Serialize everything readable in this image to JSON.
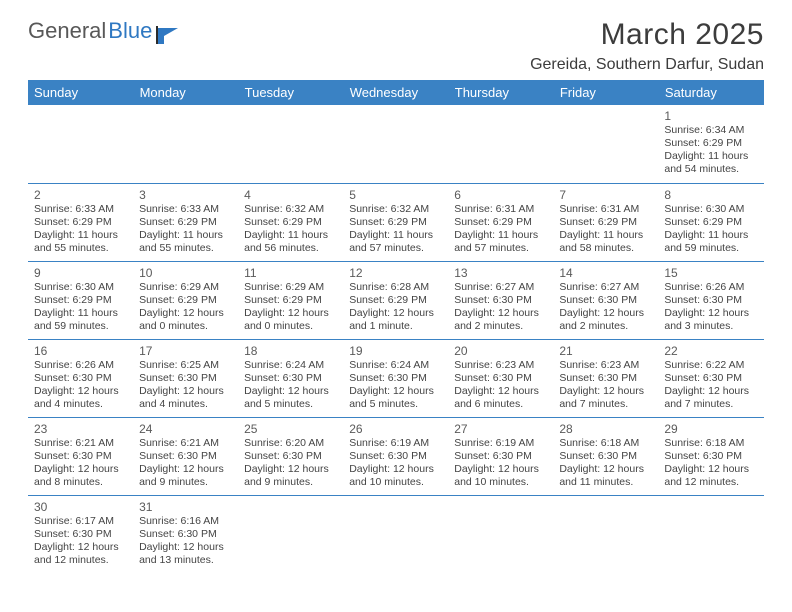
{
  "logo": {
    "text1": "General",
    "text2": "Blue"
  },
  "title": "March 2025",
  "subtitle": "Gereida, Southern Darfur, Sudan",
  "colors": {
    "header_bg": "#3a82c4",
    "header_fg": "#ffffff",
    "rule": "#3a82c4",
    "logo_blue": "#2f78c2"
  },
  "weekdays": [
    "Sunday",
    "Monday",
    "Tuesday",
    "Wednesday",
    "Thursday",
    "Friday",
    "Saturday"
  ],
  "weeks": [
    [
      null,
      null,
      null,
      null,
      null,
      null,
      {
        "n": "1",
        "sr": "Sunrise: 6:34 AM",
        "ss": "Sunset: 6:29 PM",
        "dl": "Daylight: 11 hours and 54 minutes."
      }
    ],
    [
      {
        "n": "2",
        "sr": "Sunrise: 6:33 AM",
        "ss": "Sunset: 6:29 PM",
        "dl": "Daylight: 11 hours and 55 minutes."
      },
      {
        "n": "3",
        "sr": "Sunrise: 6:33 AM",
        "ss": "Sunset: 6:29 PM",
        "dl": "Daylight: 11 hours and 55 minutes."
      },
      {
        "n": "4",
        "sr": "Sunrise: 6:32 AM",
        "ss": "Sunset: 6:29 PM",
        "dl": "Daylight: 11 hours and 56 minutes."
      },
      {
        "n": "5",
        "sr": "Sunrise: 6:32 AM",
        "ss": "Sunset: 6:29 PM",
        "dl": "Daylight: 11 hours and 57 minutes."
      },
      {
        "n": "6",
        "sr": "Sunrise: 6:31 AM",
        "ss": "Sunset: 6:29 PM",
        "dl": "Daylight: 11 hours and 57 minutes."
      },
      {
        "n": "7",
        "sr": "Sunrise: 6:31 AM",
        "ss": "Sunset: 6:29 PM",
        "dl": "Daylight: 11 hours and 58 minutes."
      },
      {
        "n": "8",
        "sr": "Sunrise: 6:30 AM",
        "ss": "Sunset: 6:29 PM",
        "dl": "Daylight: 11 hours and 59 minutes."
      }
    ],
    [
      {
        "n": "9",
        "sr": "Sunrise: 6:30 AM",
        "ss": "Sunset: 6:29 PM",
        "dl": "Daylight: 11 hours and 59 minutes."
      },
      {
        "n": "10",
        "sr": "Sunrise: 6:29 AM",
        "ss": "Sunset: 6:29 PM",
        "dl": "Daylight: 12 hours and 0 minutes."
      },
      {
        "n": "11",
        "sr": "Sunrise: 6:29 AM",
        "ss": "Sunset: 6:29 PM",
        "dl": "Daylight: 12 hours and 0 minutes."
      },
      {
        "n": "12",
        "sr": "Sunrise: 6:28 AM",
        "ss": "Sunset: 6:29 PM",
        "dl": "Daylight: 12 hours and 1 minute."
      },
      {
        "n": "13",
        "sr": "Sunrise: 6:27 AM",
        "ss": "Sunset: 6:30 PM",
        "dl": "Daylight: 12 hours and 2 minutes."
      },
      {
        "n": "14",
        "sr": "Sunrise: 6:27 AM",
        "ss": "Sunset: 6:30 PM",
        "dl": "Daylight: 12 hours and 2 minutes."
      },
      {
        "n": "15",
        "sr": "Sunrise: 6:26 AM",
        "ss": "Sunset: 6:30 PM",
        "dl": "Daylight: 12 hours and 3 minutes."
      }
    ],
    [
      {
        "n": "16",
        "sr": "Sunrise: 6:26 AM",
        "ss": "Sunset: 6:30 PM",
        "dl": "Daylight: 12 hours and 4 minutes."
      },
      {
        "n": "17",
        "sr": "Sunrise: 6:25 AM",
        "ss": "Sunset: 6:30 PM",
        "dl": "Daylight: 12 hours and 4 minutes."
      },
      {
        "n": "18",
        "sr": "Sunrise: 6:24 AM",
        "ss": "Sunset: 6:30 PM",
        "dl": "Daylight: 12 hours and 5 minutes."
      },
      {
        "n": "19",
        "sr": "Sunrise: 6:24 AM",
        "ss": "Sunset: 6:30 PM",
        "dl": "Daylight: 12 hours and 5 minutes."
      },
      {
        "n": "20",
        "sr": "Sunrise: 6:23 AM",
        "ss": "Sunset: 6:30 PM",
        "dl": "Daylight: 12 hours and 6 minutes."
      },
      {
        "n": "21",
        "sr": "Sunrise: 6:23 AM",
        "ss": "Sunset: 6:30 PM",
        "dl": "Daylight: 12 hours and 7 minutes."
      },
      {
        "n": "22",
        "sr": "Sunrise: 6:22 AM",
        "ss": "Sunset: 6:30 PM",
        "dl": "Daylight: 12 hours and 7 minutes."
      }
    ],
    [
      {
        "n": "23",
        "sr": "Sunrise: 6:21 AM",
        "ss": "Sunset: 6:30 PM",
        "dl": "Daylight: 12 hours and 8 minutes."
      },
      {
        "n": "24",
        "sr": "Sunrise: 6:21 AM",
        "ss": "Sunset: 6:30 PM",
        "dl": "Daylight: 12 hours and 9 minutes."
      },
      {
        "n": "25",
        "sr": "Sunrise: 6:20 AM",
        "ss": "Sunset: 6:30 PM",
        "dl": "Daylight: 12 hours and 9 minutes."
      },
      {
        "n": "26",
        "sr": "Sunrise: 6:19 AM",
        "ss": "Sunset: 6:30 PM",
        "dl": "Daylight: 12 hours and 10 minutes."
      },
      {
        "n": "27",
        "sr": "Sunrise: 6:19 AM",
        "ss": "Sunset: 6:30 PM",
        "dl": "Daylight: 12 hours and 10 minutes."
      },
      {
        "n": "28",
        "sr": "Sunrise: 6:18 AM",
        "ss": "Sunset: 6:30 PM",
        "dl": "Daylight: 12 hours and 11 minutes."
      },
      {
        "n": "29",
        "sr": "Sunrise: 6:18 AM",
        "ss": "Sunset: 6:30 PM",
        "dl": "Daylight: 12 hours and 12 minutes."
      }
    ],
    [
      {
        "n": "30",
        "sr": "Sunrise: 6:17 AM",
        "ss": "Sunset: 6:30 PM",
        "dl": "Daylight: 12 hours and 12 minutes."
      },
      {
        "n": "31",
        "sr": "Sunrise: 6:16 AM",
        "ss": "Sunset: 6:30 PM",
        "dl": "Daylight: 12 hours and 13 minutes."
      },
      null,
      null,
      null,
      null,
      null
    ]
  ]
}
